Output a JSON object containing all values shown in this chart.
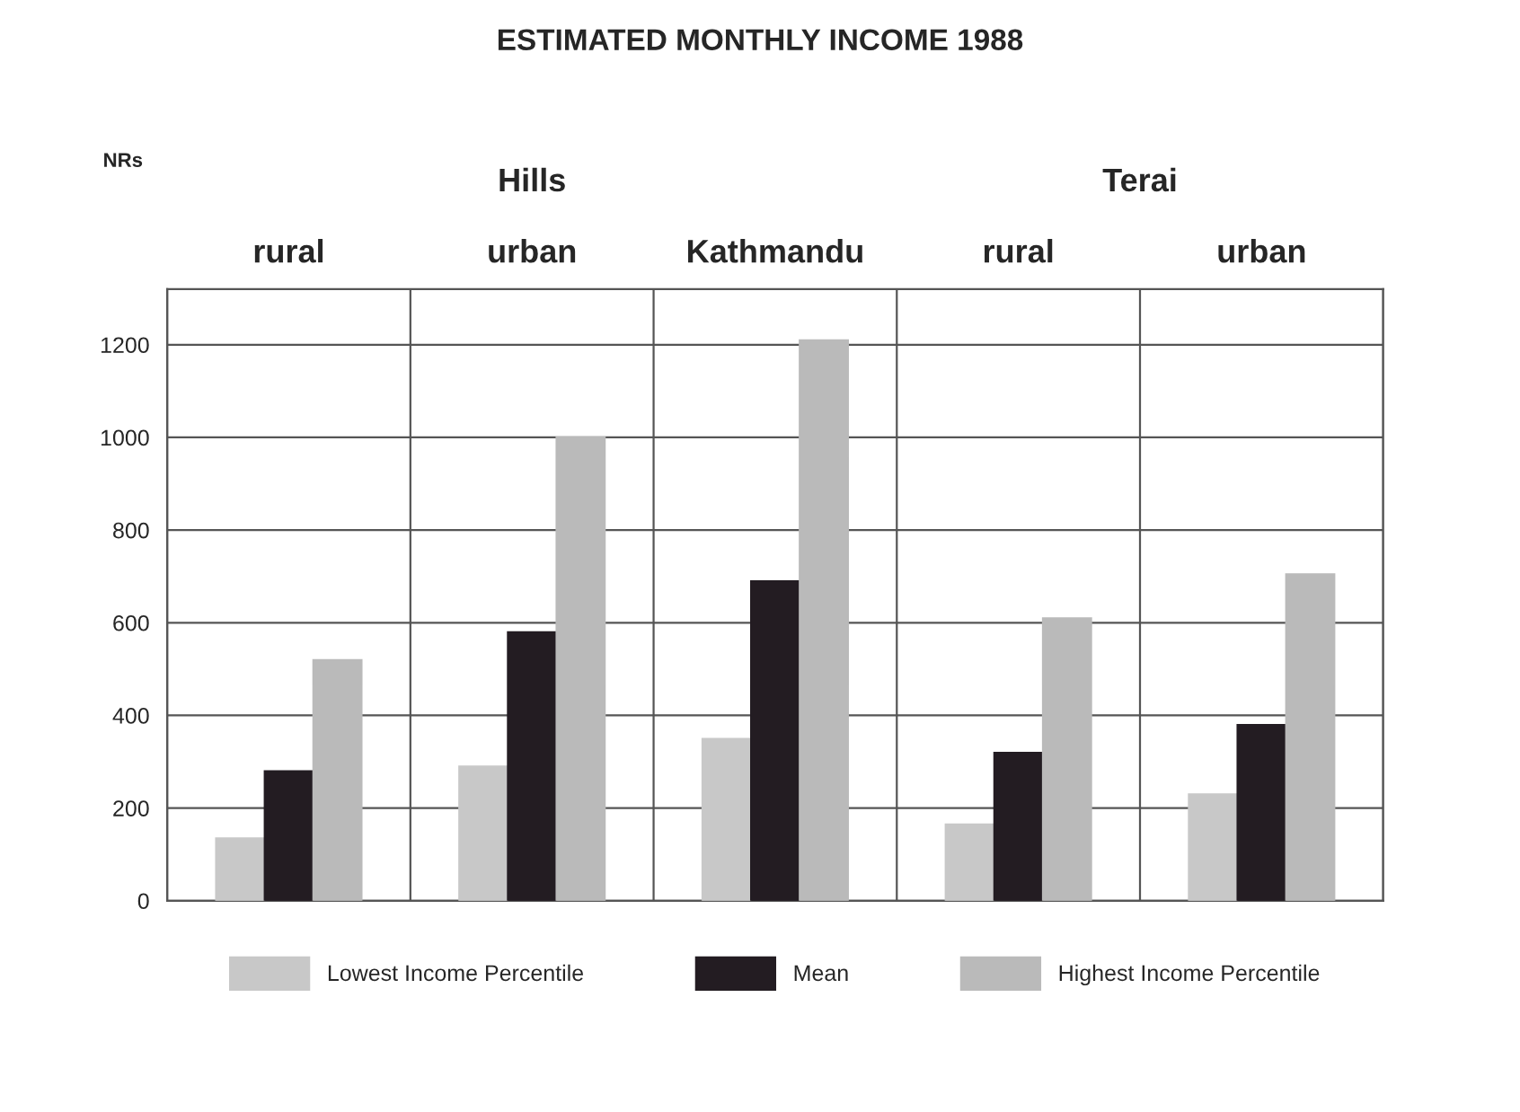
{
  "chart_data": {
    "type": "bar",
    "title": "ESTIMATED MONTHLY INCOME 1988",
    "ylabel": "NRs",
    "categories": [
      "rural",
      "urban",
      "Kathmandu",
      "rural",
      "urban"
    ],
    "series": [
      {
        "name": "Lowest Income Percentile",
        "color": "#c8c8c8",
        "values": [
          135,
          290,
          350,
          165,
          230
        ]
      },
      {
        "name": "Mean",
        "color": "#231c22",
        "values": [
          280,
          580,
          690,
          320,
          380
        ]
      },
      {
        "name": "Highest Income Percentile",
        "color": "#bababa",
        "values": [
          520,
          1000,
          1210,
          610,
          705
        ]
      }
    ],
    "annotations": [
      "Hills",
      "Terai"
    ],
    "ylim": [
      0,
      1320
    ],
    "yticks": [
      0,
      200,
      400,
      600,
      800,
      1000,
      1200
    ],
    "grid": true,
    "legend": "bottom"
  }
}
